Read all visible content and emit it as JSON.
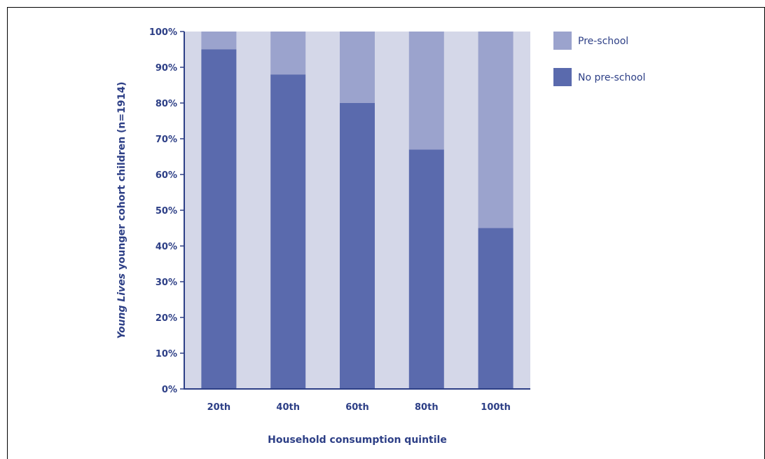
{
  "chart_data": {
    "type": "bar",
    "stacked": true,
    "categories": [
      "20th",
      "40th",
      "60th",
      "80th",
      "100th"
    ],
    "series": [
      {
        "name": "No pre-school",
        "values": [
          95,
          88,
          80,
          67,
          45
        ],
        "color": "#5a6aad"
      },
      {
        "name": "Pre-school",
        "values": [
          5,
          12,
          20,
          33,
          55
        ],
        "color": "#9ba3cd"
      }
    ],
    "xlabel": "Household consumption quintile",
    "ylabel_italic": "Young Lives",
    "ylabel_rest": " younger cohort children (n=1914)",
    "ylim": [
      0,
      100
    ],
    "yticks": [
      0,
      10,
      20,
      30,
      40,
      50,
      60,
      70,
      80,
      90,
      100
    ],
    "ytick_labels": [
      "0%",
      "10%",
      "20%",
      "30%",
      "40%",
      "50%",
      "60%",
      "70%",
      "80%",
      "90%",
      "100%"
    ],
    "legend_position": "top-right",
    "plot_background": "#d4d7e8",
    "axis_color": "#2d3f86",
    "grid": false
  }
}
